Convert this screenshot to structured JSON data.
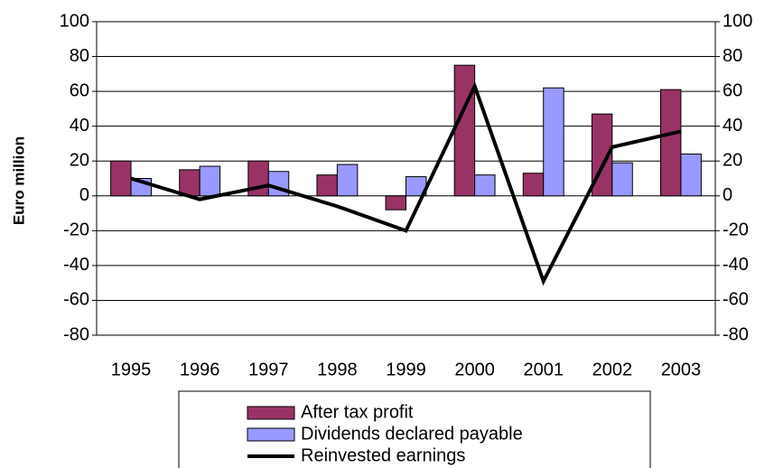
{
  "chart_data": {
    "type": "bar",
    "y_axis_label": "Euro million",
    "categories": [
      "1995",
      "1996",
      "1997",
      "1998",
      "1999",
      "2000",
      "2001",
      "2002",
      "2003"
    ],
    "series": [
      {
        "name": "After tax profit",
        "color": "#993366",
        "values": [
          20,
          15,
          20,
          12,
          -8,
          75,
          13,
          47,
          61
        ]
      },
      {
        "name": "Dividends declared payable",
        "color": "#9999ff",
        "values": [
          10,
          17,
          14,
          18,
          11,
          12,
          62,
          19,
          24
        ]
      },
      {
        "name": "Reinvested earnings",
        "color": "#000000",
        "type": "line",
        "axis": "y2",
        "values": [
          10,
          -2,
          6,
          -6,
          -20,
          63,
          -49,
          28,
          37
        ]
      }
    ],
    "ylim": [
      -80,
      100
    ],
    "yticks": [
      -80,
      -60,
      -40,
      -20,
      0,
      20,
      40,
      60,
      80,
      100
    ],
    "y2lim": [
      -80,
      100
    ],
    "y2ticks": [
      -80,
      -60,
      -40,
      -20,
      0,
      20,
      40,
      60,
      80,
      100
    ],
    "grid": true
  }
}
